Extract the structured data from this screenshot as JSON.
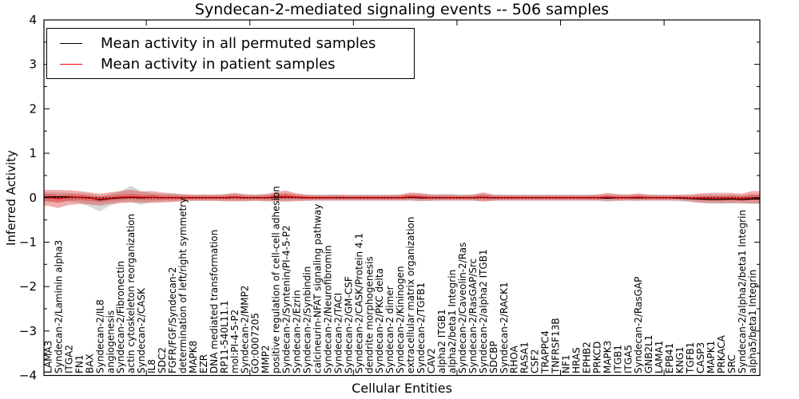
{
  "chart_data": {
    "type": "line",
    "title": "Syndecan-2-mediated signaling events -- 506 samples",
    "xlabel": "Cellular Entities",
    "ylabel": "Inferred Activity",
    "ylim": [
      -4,
      4
    ],
    "grid": false,
    "legend_position": "upper left",
    "yticks": [
      4,
      3,
      2,
      1,
      0,
      -1,
      -2,
      -3,
      -4
    ],
    "ytick_labels": [
      "4",
      "3",
      "2",
      "1",
      "0",
      "−1",
      "−2",
      "−3",
      "−4"
    ],
    "x_major_tick_indices": [
      10,
      20,
      30,
      40,
      50,
      60
    ],
    "zero_line": {
      "value": 0,
      "style": "dotted",
      "color": "#000000"
    },
    "categories": [
      "LAMA3",
      "Syndecan-2/Laminin alpha3",
      "ITGA2",
      "FN1",
      "BAX",
      "Syndecan-2/IL8",
      "angiogenesis",
      "Syndecan-2/Fibronectin",
      "actin cytoskeleton reorganization",
      "Syndecan-2/CASK",
      "IL8",
      "SDC2",
      "FGFR/FGF/Syndecan-2",
      "determination of left/right symmetry",
      "MAPK8",
      "EZR",
      "DNA mediated transformation",
      "RP11-540L11.1",
      "mol:PI-4-5-P2",
      "Syndecan-2/MMP2",
      "GO:0007205",
      "MMP2",
      "positive regulation of cell-cell adhesion",
      "Syndecan-2/Syntenin/PI-4-5-P2",
      "Syndecan-2/Ezrin",
      "Syndecan-2/Synbindin",
      "calcineurin-NFAT signaling pathway",
      "Syndecan-2/Neurofibromin",
      "Syndecan-2/TACI",
      "Syndecan-2/GM-CSF",
      "Syndecan-2/CASK/Protein 4.1",
      "dendrite morphogenesis",
      "Syndecan-2/PKC delta",
      "Syndecan-2 dimer",
      "Syndecan-2/Kininogen",
      "extracellular matrix organization",
      "Syndecan-2/TGFB1",
      "CAV2",
      "alpha2 ITGB1",
      "alpha2/beta1 Integrin",
      "Syndecan-2/Caveolin-2/Ras",
      "Syndecan-2/RasGAP/Src",
      "Syndecan-2/alpha2 ITGB1",
      "SDCBP",
      "Syndecan-2/RACK1",
      "RHOA",
      "RASA1",
      "CSF2",
      "TRAPPC4",
      "TNFRSF13B",
      "NF1",
      "HRAS",
      "EPHB2",
      "PRKCD",
      "MAPK3",
      "ITGB1",
      "ITGA5",
      "Syndecan-2/RasGAP",
      "GNB2L1",
      "LAMA1",
      "EPB41",
      "KNG1",
      "TGFB1",
      "CASP3",
      "MAPK1",
      "PRKACA",
      "SRC",
      "Syndecan-2/alpha2/beta1 Integrin",
      "alpha5/beta1 Integrin"
    ],
    "series": [
      {
        "name": "Mean activity in all permuted samples",
        "color": "#000000",
        "band_color": "rgba(40,40,40,0.18)",
        "values": [
          0.02,
          0.02,
          0.02,
          0.01,
          0.0,
          -0.05,
          -0.02,
          0.0,
          0.01,
          0.0,
          0.01,
          0.0,
          0.0,
          0.0,
          0.0,
          0.0,
          0.0,
          0.0,
          0.01,
          0.0,
          0.0,
          0.0,
          0.01,
          0.02,
          0.01,
          0.0,
          0.0,
          0.0,
          0.0,
          0.0,
          0.0,
          0.0,
          0.0,
          0.0,
          0.0,
          0.01,
          0.0,
          0.0,
          0.0,
          0.0,
          0.0,
          0.0,
          0.01,
          0.0,
          0.0,
          0.0,
          0.0,
          0.0,
          0.0,
          0.0,
          0.0,
          0.0,
          0.0,
          0.0,
          -0.01,
          0.0,
          0.0,
          0.0,
          0.0,
          0.0,
          0.0,
          -0.01,
          -0.02,
          -0.03,
          -0.04,
          -0.04,
          -0.03,
          -0.04,
          -0.03
        ],
        "band_upper": [
          0.1,
          0.1,
          0.09,
          0.09,
          0.09,
          0.09,
          0.1,
          0.14,
          0.26,
          0.15,
          0.09,
          0.08,
          0.08,
          0.07,
          0.07,
          0.07,
          0.07,
          0.07,
          0.08,
          0.07,
          0.07,
          0.07,
          0.08,
          0.09,
          0.07,
          0.07,
          0.07,
          0.07,
          0.07,
          0.07,
          0.07,
          0.07,
          0.07,
          0.07,
          0.07,
          0.08,
          0.1,
          0.08,
          0.08,
          0.08,
          0.07,
          0.07,
          0.08,
          0.07,
          0.07,
          0.07,
          0.07,
          0.07,
          0.07,
          0.07,
          0.07,
          0.07,
          0.07,
          0.07,
          0.08,
          0.07,
          0.07,
          0.07,
          0.07,
          0.07,
          0.07,
          0.07,
          0.08,
          0.09,
          0.1,
          0.1,
          0.1,
          0.1,
          0.11
        ],
        "band_lower": [
          0.11,
          0.11,
          0.1,
          0.12,
          0.2,
          0.26,
          0.16,
          0.1,
          0.1,
          0.16,
          0.1,
          0.08,
          0.08,
          0.07,
          0.07,
          0.07,
          0.07,
          0.07,
          0.08,
          0.07,
          0.07,
          0.07,
          0.08,
          0.09,
          0.07,
          0.07,
          0.07,
          0.07,
          0.07,
          0.07,
          0.07,
          0.07,
          0.07,
          0.07,
          0.07,
          0.08,
          0.08,
          0.07,
          0.07,
          0.07,
          0.07,
          0.07,
          0.08,
          0.07,
          0.07,
          0.07,
          0.07,
          0.07,
          0.07,
          0.07,
          0.07,
          0.07,
          0.07,
          0.07,
          0.08,
          0.07,
          0.07,
          0.07,
          0.07,
          0.07,
          0.07,
          0.07,
          0.08,
          0.09,
          0.1,
          0.1,
          0.1,
          0.1,
          0.11
        ]
      },
      {
        "name": "Mean activity in patient samples",
        "color": "#ff0000",
        "band_color": "rgba(221,51,51,0.40)",
        "values": [
          0.01,
          -0.02,
          0.01,
          0.01,
          -0.01,
          -0.03,
          -0.01,
          0.01,
          0.02,
          0.01,
          0.01,
          0.0,
          0.0,
          0.0,
          0.0,
          0.0,
          0.0,
          0.0,
          0.01,
          0.0,
          0.0,
          0.0,
          0.02,
          0.03,
          0.01,
          0.0,
          0.0,
          0.0,
          0.0,
          0.0,
          0.0,
          0.0,
          0.0,
          0.0,
          0.0,
          0.02,
          0.01,
          0.0,
          0.0,
          0.0,
          0.0,
          0.0,
          0.01,
          0.0,
          0.0,
          0.0,
          0.0,
          0.0,
          0.0,
          0.0,
          0.0,
          0.0,
          0.0,
          0.0,
          0.01,
          0.0,
          0.0,
          0.01,
          0.0,
          0.0,
          0.0,
          0.0,
          -0.01,
          -0.01,
          -0.01,
          -0.01,
          -0.01,
          -0.02,
          0.0
        ],
        "band_upper": [
          0.17,
          0.19,
          0.16,
          0.14,
          0.13,
          0.12,
          0.13,
          0.14,
          0.16,
          0.13,
          0.14,
          0.12,
          0.1,
          0.08,
          0.07,
          0.07,
          0.07,
          0.08,
          0.1,
          0.08,
          0.07,
          0.08,
          0.11,
          0.13,
          0.09,
          0.07,
          0.06,
          0.06,
          0.07,
          0.06,
          0.06,
          0.06,
          0.06,
          0.06,
          0.07,
          0.1,
          0.09,
          0.07,
          0.07,
          0.07,
          0.06,
          0.07,
          0.11,
          0.07,
          0.06,
          0.06,
          0.06,
          0.06,
          0.06,
          0.06,
          0.06,
          0.06,
          0.06,
          0.07,
          0.1,
          0.08,
          0.07,
          0.09,
          0.07,
          0.06,
          0.06,
          0.07,
          0.08,
          0.11,
          0.12,
          0.12,
          0.12,
          0.11,
          0.15
        ],
        "band_lower": [
          0.19,
          0.21,
          0.17,
          0.15,
          0.14,
          0.15,
          0.13,
          0.13,
          0.13,
          0.12,
          0.13,
          0.11,
          0.1,
          0.08,
          0.07,
          0.07,
          0.07,
          0.08,
          0.09,
          0.08,
          0.07,
          0.08,
          0.1,
          0.12,
          0.09,
          0.07,
          0.06,
          0.06,
          0.06,
          0.06,
          0.06,
          0.06,
          0.06,
          0.06,
          0.06,
          0.08,
          0.08,
          0.07,
          0.06,
          0.06,
          0.06,
          0.06,
          0.1,
          0.07,
          0.06,
          0.06,
          0.06,
          0.06,
          0.06,
          0.06,
          0.06,
          0.06,
          0.06,
          0.06,
          0.08,
          0.07,
          0.06,
          0.08,
          0.06,
          0.06,
          0.06,
          0.06,
          0.07,
          0.1,
          0.11,
          0.11,
          0.11,
          0.1,
          0.13
        ]
      }
    ]
  }
}
